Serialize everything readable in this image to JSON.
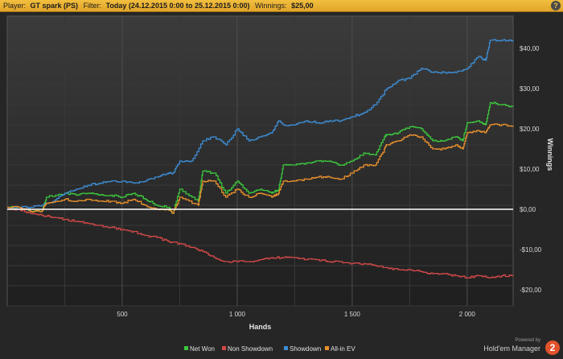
{
  "header": {
    "player_label": "Player:",
    "player_value": "GT spark (PS)",
    "filter_label": "Filter:",
    "filter_value": "Today (24.12.2015 0:00 to 25.12.2015 0:00)",
    "winnings_label": "Winnings:",
    "winnings_value": "$25,00",
    "help_symbol": "?"
  },
  "brand": {
    "powered_by": "Powered by",
    "name": "Hold'em Manager",
    "logo_text": "2"
  },
  "chart_data": {
    "type": "line",
    "xlabel": "Hands",
    "ylabel": "Winnings",
    "xlim": [
      0,
      2200
    ],
    "ylim": [
      -24,
      48
    ],
    "x_ticks": [
      500,
      1000,
      1500,
      2000
    ],
    "x_tick_labels": [
      "500",
      "1 000",
      "1 500",
      "2 000"
    ],
    "y_ticks": [
      40,
      30,
      20,
      10,
      0,
      -10,
      -20
    ],
    "y_tick_labels": [
      "$40,00",
      "$30,00",
      "$20,00",
      "$10,00",
      "$0,00",
      "-$10,00",
      "-$20,00"
    ],
    "grid": true,
    "zero_line": true,
    "legend_position": "bottom-center",
    "series": [
      {
        "name": "Net Won",
        "color": "#3cc83c",
        "x": [
          0,
          50,
          100,
          150,
          170,
          250,
          300,
          350,
          400,
          450,
          500,
          550,
          600,
          650,
          700,
          720,
          750,
          830,
          850,
          900,
          950,
          1000,
          1050,
          1100,
          1150,
          1180,
          1200,
          1250,
          1300,
          1350,
          1400,
          1450,
          1500,
          1550,
          1600,
          1640,
          1650,
          1700,
          1750,
          1800,
          1850,
          1900,
          1950,
          1980,
          2000,
          2050,
          2080,
          2100,
          2150,
          2200
        ],
        "y": [
          0.5,
          0.5,
          -0.5,
          -0.5,
          3,
          4,
          3.5,
          4,
          3.5,
          3.5,
          3,
          4,
          2.5,
          1,
          0.5,
          -1,
          5,
          2,
          9.5,
          9,
          4,
          7,
          4,
          5,
          4,
          5,
          11,
          11,
          11.5,
          12,
          12,
          11,
          12,
          14,
          13.5,
          18,
          18.5,
          19,
          20.5,
          20,
          17,
          17,
          18,
          17,
          21.5,
          22,
          21,
          26.5,
          26,
          25.5
        ]
      },
      {
        "name": "Non Showdown",
        "color": "#d24848",
        "x": [
          0,
          50,
          100,
          150,
          200,
          250,
          300,
          350,
          400,
          450,
          500,
          550,
          600,
          650,
          700,
          750,
          800,
          850,
          900,
          950,
          1000,
          1050,
          1100,
          1150,
          1200,
          1250,
          1300,
          1350,
          1400,
          1450,
          1500,
          1550,
          1600,
          1650,
          1700,
          1750,
          1800,
          1850,
          1900,
          1950,
          2000,
          2050,
          2100,
          2150,
          2200
        ],
        "y": [
          0,
          0,
          -1,
          -1.5,
          -2,
          -2.5,
          -3,
          -3.5,
          -4,
          -4.5,
          -5,
          -5.5,
          -6.5,
          -7,
          -8,
          -8.5,
          -9.5,
          -10.5,
          -12,
          -13,
          -13,
          -13,
          -12.5,
          -12,
          -12,
          -12,
          -12.5,
          -12.5,
          -13,
          -13,
          -13.5,
          -13.5,
          -14,
          -14.5,
          -15,
          -15,
          -15.5,
          -16,
          -16,
          -16.5,
          -17,
          -16.5,
          -17,
          -16.5,
          -16.5
        ]
      },
      {
        "name": "Showdown",
        "color": "#3c8cd2",
        "x": [
          0,
          50,
          100,
          150,
          200,
          250,
          300,
          350,
          400,
          450,
          500,
          550,
          600,
          650,
          700,
          720,
          750,
          800,
          850,
          900,
          950,
          1000,
          1050,
          1100,
          1150,
          1180,
          1200,
          1250,
          1300,
          1350,
          1400,
          1450,
          1500,
          1550,
          1600,
          1650,
          1700,
          1750,
          1800,
          1850,
          1900,
          1950,
          2000,
          2050,
          2080,
          2100,
          2150,
          2200
        ],
        "y": [
          0.5,
          0.5,
          0.5,
          1,
          2,
          4,
          5,
          6,
          6.5,
          7,
          7,
          6.5,
          7,
          8,
          9,
          9,
          12,
          12,
          17,
          18,
          16,
          20,
          17,
          18,
          19,
          22,
          21,
          21,
          22,
          21.5,
          22,
          22,
          23,
          24,
          26,
          30,
          32,
          32.5,
          35,
          34,
          34,
          34,
          35,
          38,
          37,
          42,
          42,
          42
        ]
      },
      {
        "name": "All-in EV",
        "color": "#e8902c",
        "x": [
          0,
          50,
          100,
          150,
          170,
          250,
          300,
          350,
          400,
          450,
          500,
          550,
          600,
          650,
          700,
          720,
          750,
          830,
          850,
          900,
          950,
          1000,
          1050,
          1100,
          1150,
          1180,
          1200,
          1250,
          1300,
          1350,
          1400,
          1450,
          1500,
          1550,
          1600,
          1640,
          1650,
          1700,
          1750,
          1800,
          1850,
          1900,
          1950,
          1980,
          2000,
          2050,
          2080,
          2100,
          2150,
          2200
        ],
        "y": [
          0.5,
          0.5,
          -0.5,
          -0.5,
          1.5,
          2.5,
          2,
          2.5,
          2,
          2,
          1.5,
          2.5,
          1,
          0,
          0,
          -1,
          3,
          1,
          7,
          7,
          3,
          5,
          3,
          4,
          3,
          4,
          7,
          7,
          7.5,
          8,
          8,
          7.5,
          9,
          11,
          11,
          15,
          16,
          17,
          18.5,
          18,
          15,
          15,
          16,
          15,
          19,
          19.5,
          19,
          21,
          21,
          20.5
        ]
      }
    ]
  }
}
